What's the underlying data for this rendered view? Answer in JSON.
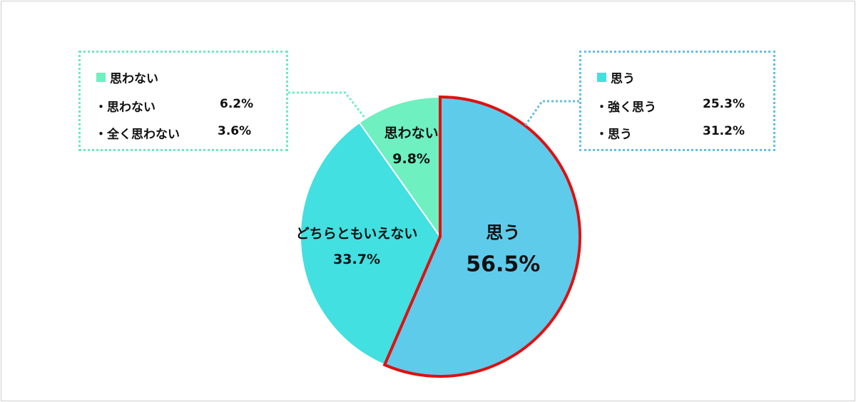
{
  "chart_data": {
    "type": "pie",
    "slices": [
      {
        "label": "思う",
        "value": 56.5,
        "display": "56.5%",
        "color": "#5ecbeb"
      },
      {
        "label": "どちらともいえない",
        "value": 33.7,
        "display": "33.7%",
        "color": "#42e0e0"
      },
      {
        "label": "思わない",
        "value": 9.8,
        "display": "9.8%",
        "color": "#6ef0c0"
      }
    ],
    "highlight": {
      "slice": "思う",
      "border_color": "#e01010"
    }
  },
  "legend_boxes": {
    "left": {
      "title": "思わない",
      "swatch_color": "#6ef0c0",
      "items": [
        {
          "label": "・思わない",
          "value": "6.2%"
        },
        {
          "label": "・全く思わない",
          "value": "3.6%"
        }
      ]
    },
    "right": {
      "title": "思う",
      "swatch_color": "#42e0e0",
      "items": [
        {
          "label": "・強く思う",
          "value": "25.3%"
        },
        {
          "label": "・思う",
          "value": "31.2%"
        }
      ]
    }
  }
}
